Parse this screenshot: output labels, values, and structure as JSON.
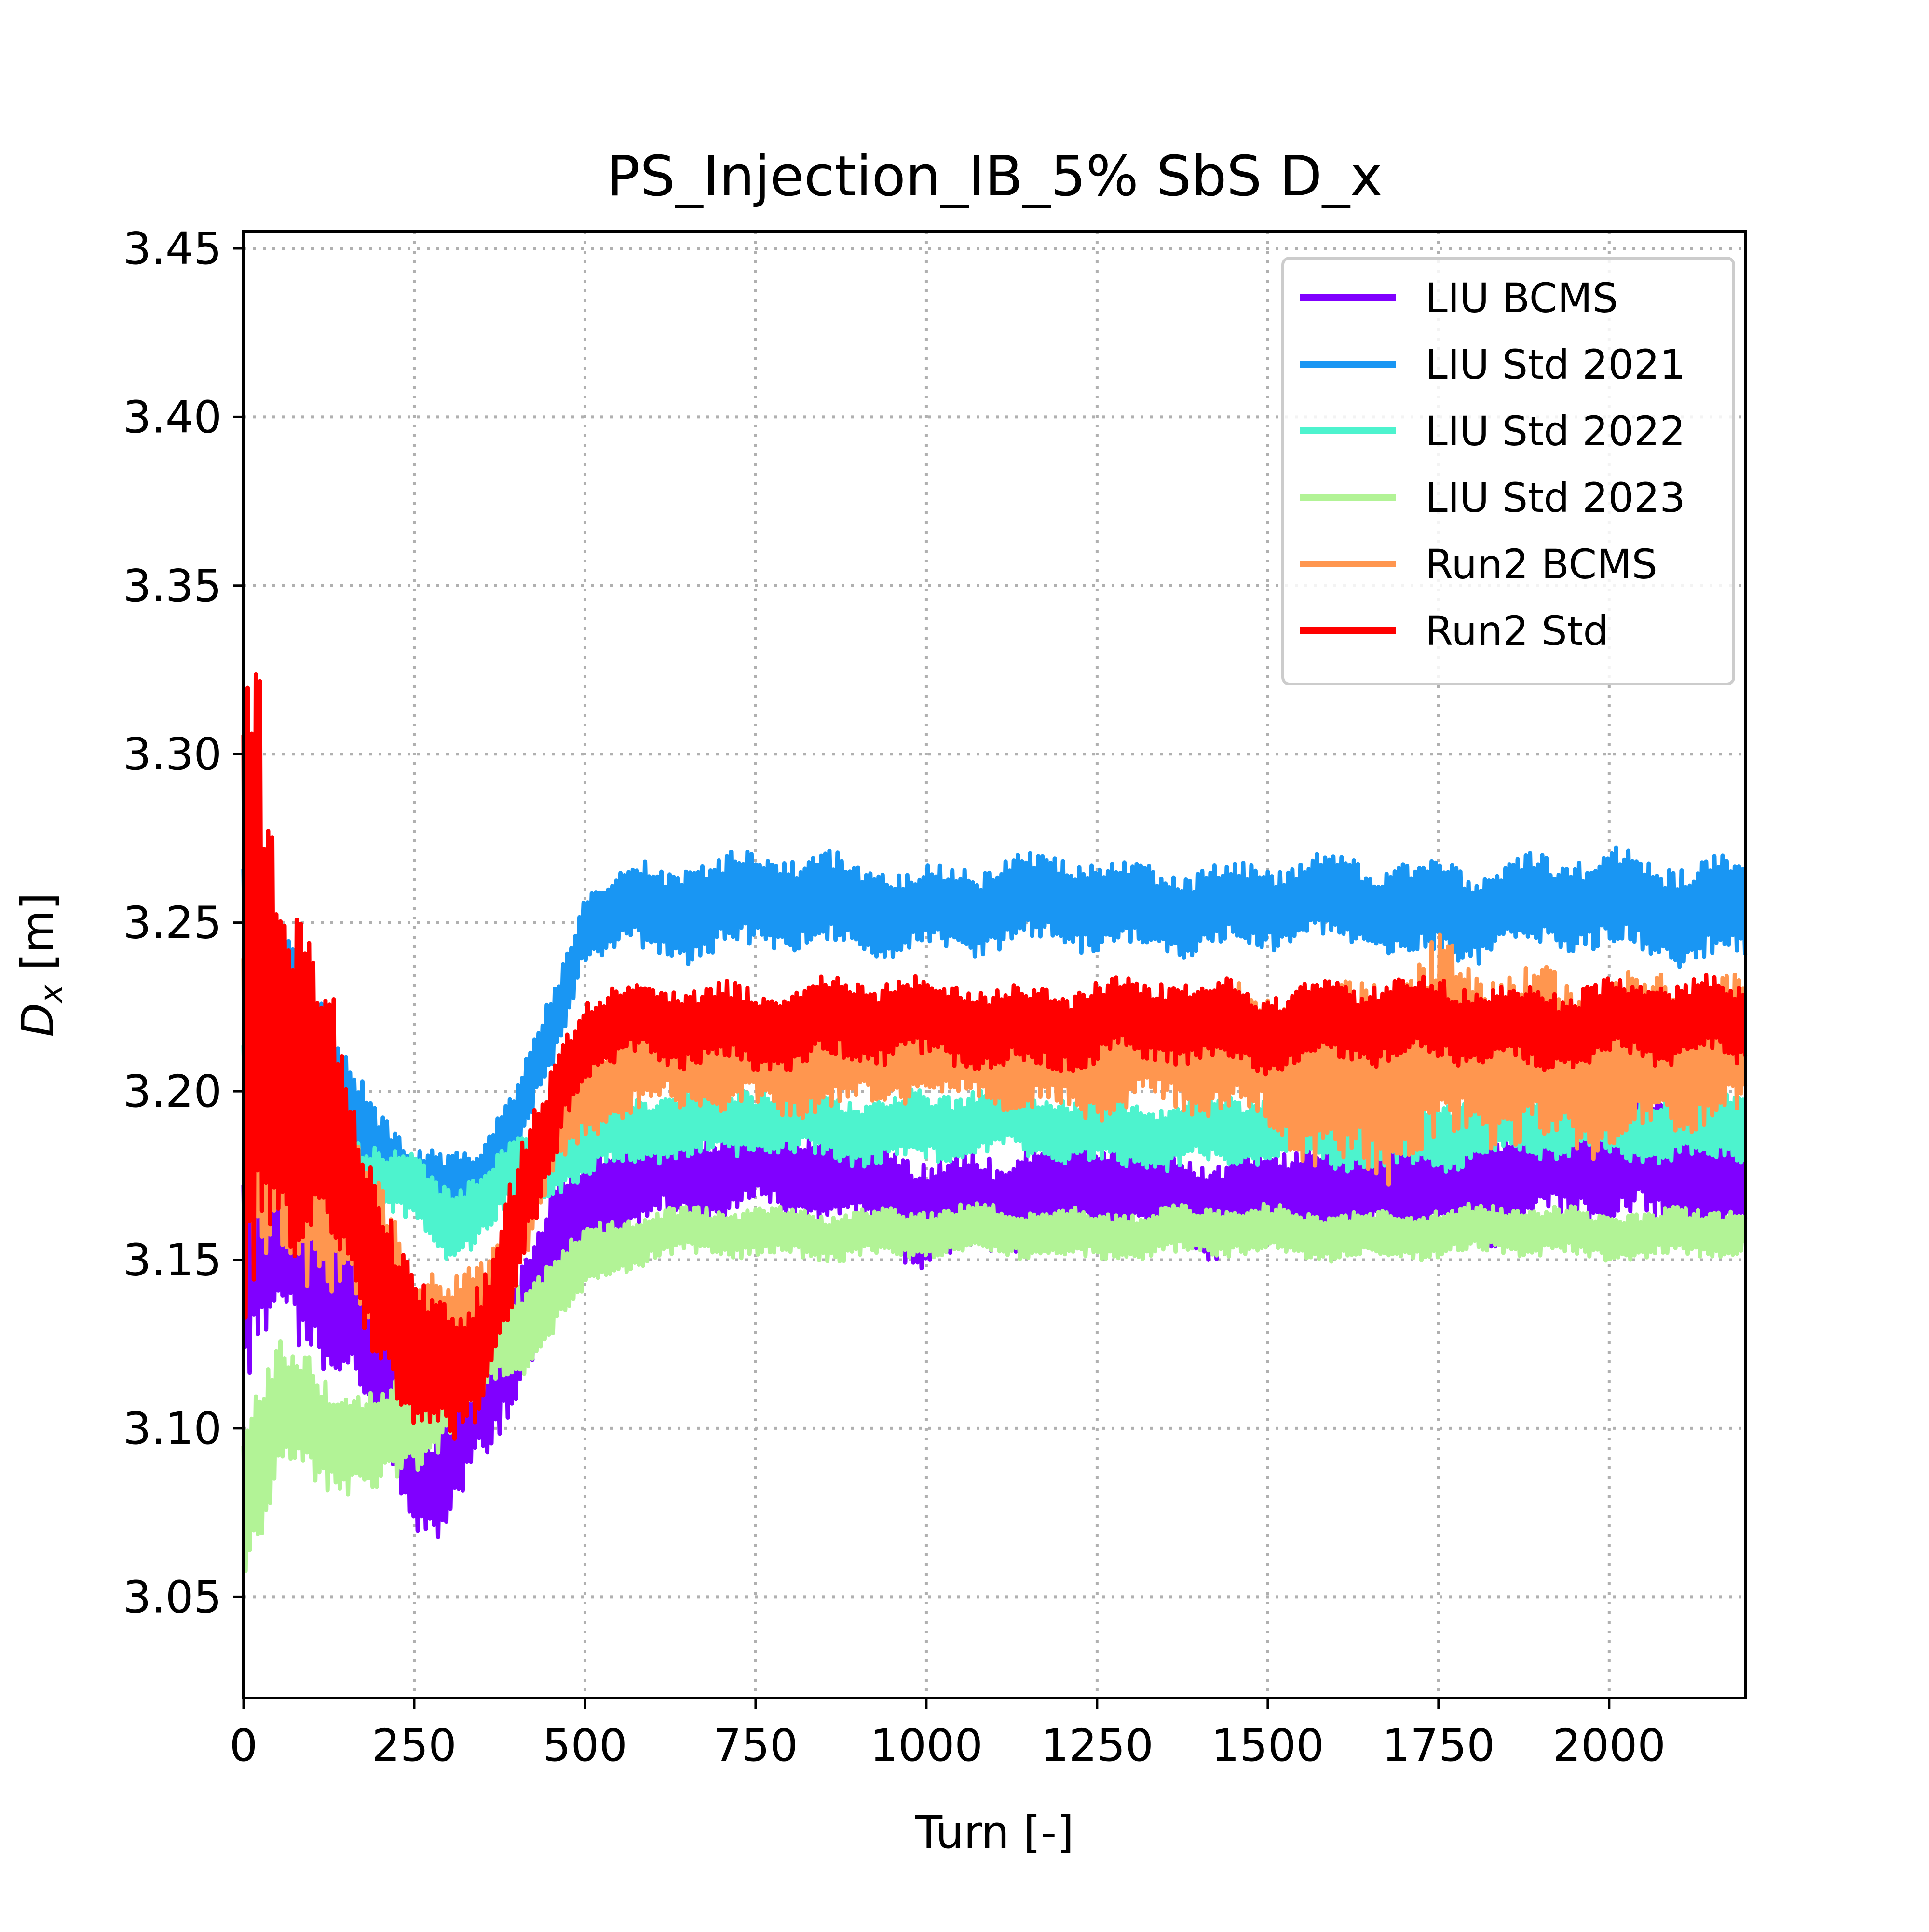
{
  "chart_data": {
    "type": "line",
    "title": "PS_Injection_IB_5% SbS D_x",
    "xlabel": "Turn [-]",
    "ylabel": {
      "main": "D",
      "sub": "x",
      "unit": " [m]"
    },
    "xlim": [
      0,
      2200
    ],
    "ylim": [
      3.02,
      3.455
    ],
    "xticks": [
      0,
      250,
      500,
      750,
      1000,
      1250,
      1500,
      1750,
      2000
    ],
    "xtick_labels": [
      "0",
      "250",
      "500",
      "750",
      "1000",
      "1250",
      "1500",
      "1750",
      "2000"
    ],
    "yticks": [
      3.05,
      3.1,
      3.15,
      3.2,
      3.25,
      3.3,
      3.35,
      3.4,
      3.45
    ],
    "ytick_labels": [
      "3.05",
      "3.10",
      "3.15",
      "3.20",
      "3.25",
      "3.30",
      "3.35",
      "3.40",
      "3.45"
    ],
    "grid": true,
    "legend_position": "top-right",
    "series": [
      {
        "name": "LIU BCMS",
        "color": "#8000ff",
        "x": [
          0,
          50,
          100,
          150,
          200,
          250,
          270,
          300,
          350,
          400,
          450,
          500,
          550,
          600,
          750,
          900,
          1000,
          1100,
          1250,
          1400,
          1500,
          1600,
          1750,
          1800,
          1900,
          2000,
          2100,
          2200
        ],
        "center": [
          3.15,
          3.16,
          3.15,
          3.14,
          3.12,
          3.095,
          3.085,
          3.09,
          3.11,
          3.13,
          3.15,
          3.165,
          3.172,
          3.175,
          3.178,
          3.172,
          3.165,
          3.168,
          3.172,
          3.168,
          3.168,
          3.17,
          3.175,
          3.175,
          3.178,
          3.18,
          3.175,
          3.178
        ],
        "amp": [
          0.04,
          0.035,
          0.03,
          0.03,
          0.025,
          0.02,
          0.015,
          0.02,
          0.02,
          0.02,
          0.018,
          0.015,
          0.015,
          0.013,
          0.013,
          0.014,
          0.016,
          0.015,
          0.014,
          0.014,
          0.015,
          0.016,
          0.017,
          0.018,
          0.02,
          0.02,
          0.02,
          0.02
        ]
      },
      {
        "name": "LIU Std 2021",
        "color": "#1996f3",
        "x": [
          0,
          50,
          100,
          150,
          200,
          250,
          300,
          350,
          400,
          450,
          480,
          500,
          550,
          600,
          750,
          900,
          1000,
          1100,
          1250,
          1400,
          1500,
          1600,
          1750,
          1800,
          1900,
          2000,
          2100,
          2200
        ],
        "center": [
          3.24,
          3.23,
          3.21,
          3.195,
          3.185,
          3.175,
          3.17,
          3.175,
          3.19,
          3.215,
          3.235,
          3.25,
          3.255,
          3.255,
          3.255,
          3.255,
          3.255,
          3.255,
          3.255,
          3.255,
          3.255,
          3.255,
          3.255,
          3.255,
          3.255,
          3.255,
          3.255,
          3.255
        ],
        "amp": [
          0.03,
          0.025,
          0.02,
          0.015,
          0.012,
          0.01,
          0.01,
          0.01,
          0.012,
          0.012,
          0.01,
          0.01,
          0.012,
          0.014,
          0.014,
          0.013,
          0.012,
          0.013,
          0.013,
          0.012,
          0.012,
          0.013,
          0.014,
          0.014,
          0.013,
          0.014,
          0.015,
          0.015
        ]
      },
      {
        "name": "LIU Std 2022",
        "color": "#4df3ce",
        "x": [
          0,
          50,
          100,
          150,
          200,
          250,
          300,
          350,
          400,
          450,
          500,
          550,
          600,
          750,
          900,
          1000,
          1100,
          1250,
          1400,
          1500,
          1600,
          1700,
          1800,
          1900,
          2000,
          2100,
          2200
        ],
        "center": [
          3.2,
          3.2,
          3.19,
          3.18,
          3.175,
          3.17,
          3.16,
          3.165,
          3.175,
          3.18,
          3.185,
          3.188,
          3.19,
          3.19,
          3.19,
          3.19,
          3.19,
          3.188,
          3.188,
          3.188,
          3.188,
          3.188,
          3.188,
          3.19,
          3.19,
          3.19,
          3.19
        ],
        "amp": [
          0.02,
          0.015,
          0.012,
          0.01,
          0.01,
          0.01,
          0.012,
          0.01,
          0.01,
          0.01,
          0.01,
          0.01,
          0.01,
          0.01,
          0.01,
          0.01,
          0.01,
          0.01,
          0.01,
          0.01,
          0.01,
          0.01,
          0.01,
          0.01,
          0.01,
          0.01,
          0.01
        ]
      },
      {
        "name": "LIU Std 2023",
        "color": "#b2f396",
        "x": [
          0,
          50,
          100,
          150,
          200,
          250,
          300,
          350,
          400,
          450,
          500,
          550,
          600,
          750,
          900,
          1000,
          1100,
          1250,
          1400,
          1500,
          1600,
          1750,
          1800,
          1900,
          2000,
          2100,
          2200
        ],
        "center": [
          3.08,
          3.105,
          3.105,
          3.1,
          3.095,
          3.1,
          3.11,
          3.12,
          3.13,
          3.14,
          3.15,
          3.155,
          3.157,
          3.158,
          3.158,
          3.158,
          3.158,
          3.158,
          3.158,
          3.158,
          3.158,
          3.158,
          3.158,
          3.158,
          3.158,
          3.158,
          3.158
        ],
        "amp": [
          0.03,
          0.02,
          0.018,
          0.016,
          0.015,
          0.014,
          0.014,
          0.014,
          0.014,
          0.012,
          0.01,
          0.008,
          0.007,
          0.007,
          0.007,
          0.007,
          0.007,
          0.007,
          0.007,
          0.007,
          0.007,
          0.007,
          0.007,
          0.007,
          0.007,
          0.007,
          0.007
        ]
      },
      {
        "name": "Run2 BCMS",
        "color": "#ff964f",
        "x": [
          0,
          50,
          100,
          150,
          200,
          250,
          300,
          350,
          400,
          450,
          500,
          550,
          600,
          750,
          900,
          1000,
          1100,
          1250,
          1400,
          1500,
          1550,
          1600,
          1700,
          1750,
          1800,
          1900,
          2000,
          2100,
          2200
        ],
        "center": [
          3.2,
          3.2,
          3.185,
          3.165,
          3.145,
          3.13,
          3.125,
          3.135,
          3.16,
          3.185,
          3.2,
          3.205,
          3.208,
          3.21,
          3.21,
          3.21,
          3.21,
          3.21,
          3.21,
          3.21,
          3.208,
          3.205,
          3.205,
          3.208,
          3.21,
          3.21,
          3.21,
          3.21,
          3.21
        ],
        "amp": [
          0.06,
          0.045,
          0.035,
          0.03,
          0.025,
          0.02,
          0.015,
          0.015,
          0.015,
          0.012,
          0.012,
          0.014,
          0.015,
          0.015,
          0.014,
          0.014,
          0.014,
          0.015,
          0.017,
          0.02,
          0.024,
          0.028,
          0.03,
          0.03,
          0.028,
          0.025,
          0.025,
          0.022,
          0.022
        ]
      },
      {
        "name": "Run2 Std",
        "color": "#ff0000",
        "x": [
          0,
          20,
          50,
          100,
          150,
          200,
          250,
          300,
          350,
          400,
          450,
          470,
          500,
          550,
          600,
          750,
          900,
          1000,
          1100,
          1250,
          1400,
          1500,
          1600,
          1750,
          1800,
          1900,
          2000,
          2100,
          2200
        ],
        "center": [
          3.22,
          3.25,
          3.22,
          3.2,
          3.17,
          3.145,
          3.12,
          3.115,
          3.13,
          3.16,
          3.19,
          3.205,
          3.215,
          3.218,
          3.22,
          3.22,
          3.22,
          3.22,
          3.22,
          3.22,
          3.22,
          3.22,
          3.22,
          3.22,
          3.22,
          3.22,
          3.22,
          3.22,
          3.22
        ],
        "amp": [
          0.12,
          0.09,
          0.06,
          0.045,
          0.035,
          0.028,
          0.022,
          0.02,
          0.02,
          0.02,
          0.016,
          0.014,
          0.012,
          0.012,
          0.012,
          0.012,
          0.012,
          0.012,
          0.012,
          0.012,
          0.012,
          0.012,
          0.012,
          0.012,
          0.012,
          0.012,
          0.012,
          0.012,
          0.012
        ]
      }
    ]
  }
}
